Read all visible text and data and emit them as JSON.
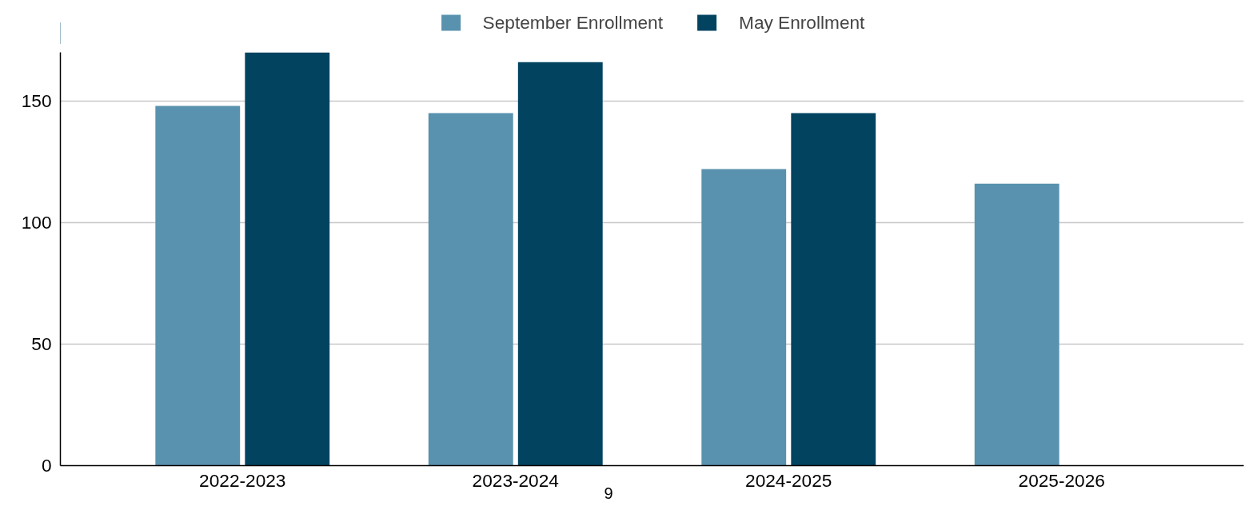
{
  "chart_data": {
    "type": "bar",
    "categories": [
      "2022-2023",
      "2023-2024",
      "2024-2025",
      "2025-2026"
    ],
    "series": [
      {
        "name": "September Enrollment",
        "color": "#5892ae",
        "values": [
          148,
          145,
          122,
          116
        ]
      },
      {
        "name": "May Enrollment",
        "color": "#024360",
        "values": [
          170,
          166,
          145,
          null
        ]
      }
    ],
    "ylim": [
      0,
      170
    ],
    "yticks": [
      0,
      50,
      100,
      150
    ],
    "grid": "y",
    "legend": "top",
    "annotations": [
      "9"
    ]
  }
}
